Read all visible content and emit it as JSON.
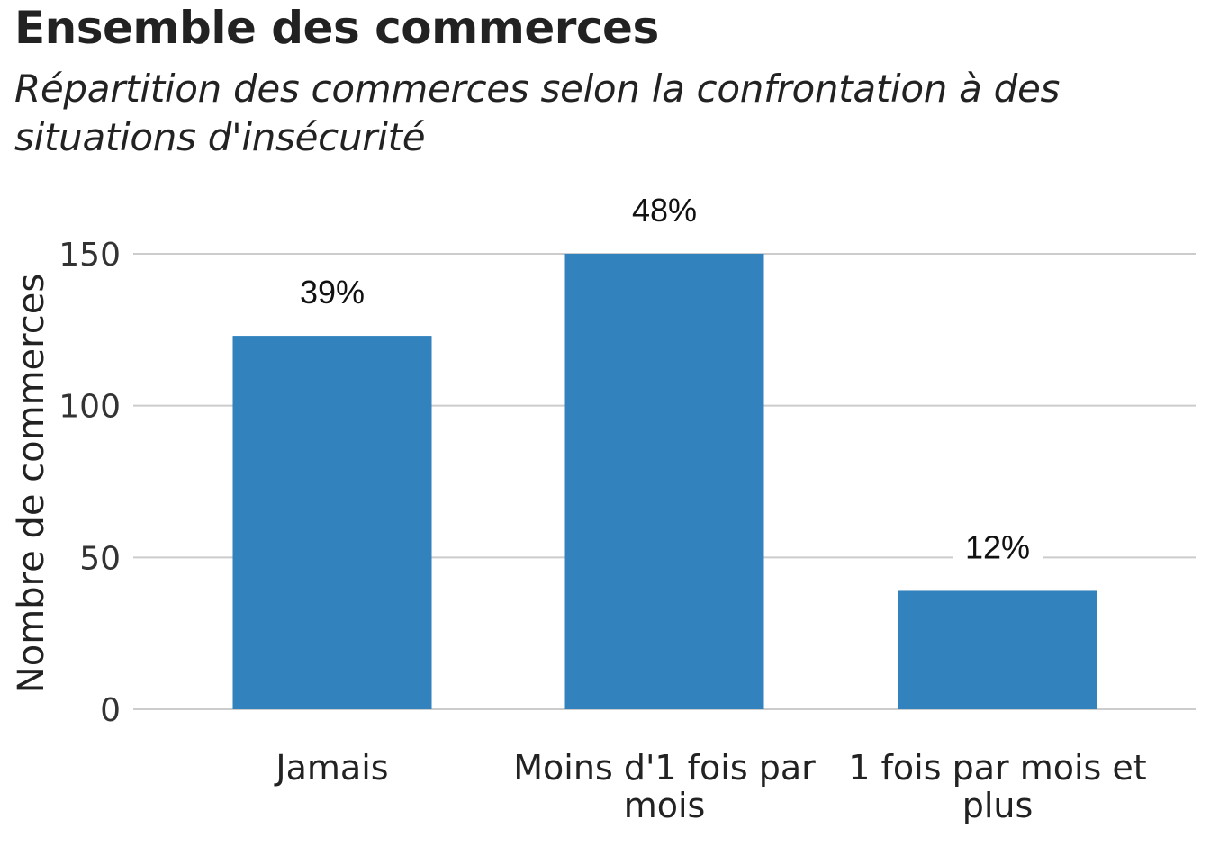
{
  "chart_data": {
    "type": "bar",
    "title": "Ensemble des commerces",
    "subtitle": "Répartition des commerces selon la confrontation à des situations d'insécurité",
    "xlabel": "",
    "ylabel": "Nombre de commerces",
    "categories": [
      [
        "Jamais"
      ],
      [
        "Moins d'1 fois par",
        "mois"
      ],
      [
        "1 fois par mois et",
        "plus"
      ]
    ],
    "values": [
      123,
      150,
      39
    ],
    "data_labels": [
      "39%",
      "48%",
      "12%"
    ],
    "yticks": [
      0,
      50,
      100,
      150
    ],
    "ylim": [
      0,
      150
    ],
    "grid": "horizontal",
    "colors": {
      "bar": "#3182bd",
      "grid": "#cccccc"
    }
  }
}
